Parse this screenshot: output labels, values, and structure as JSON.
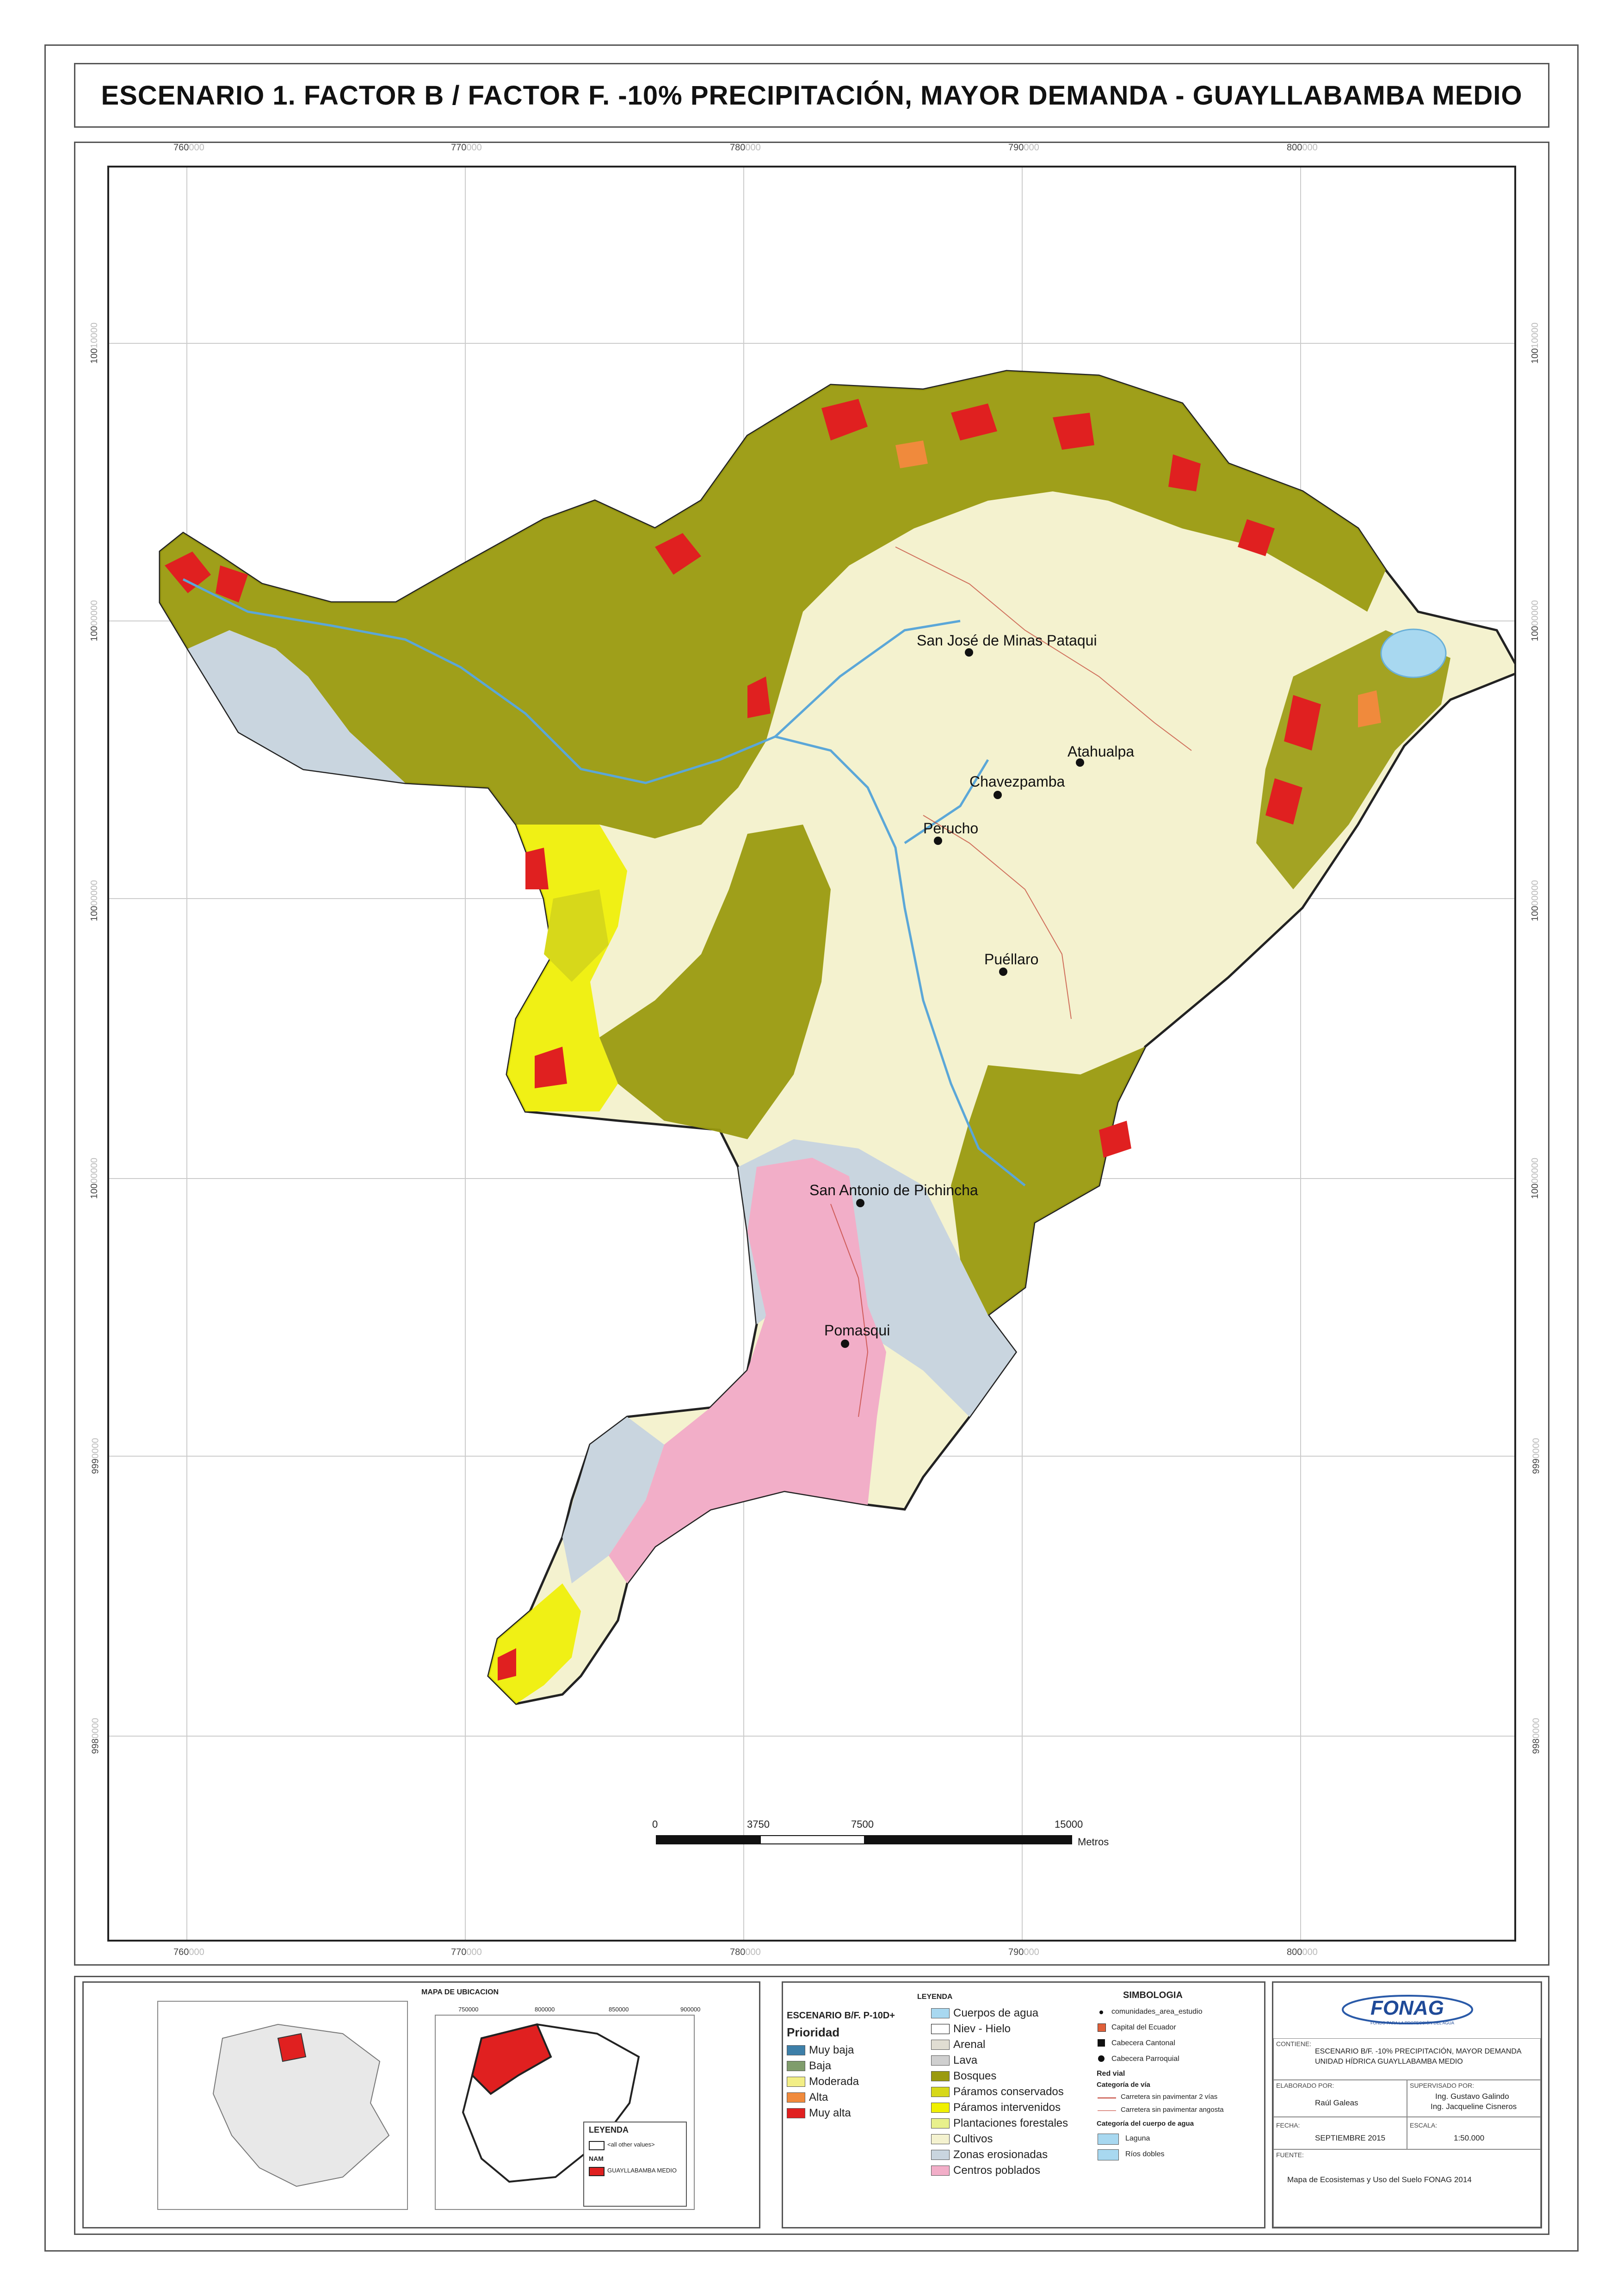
{
  "title": "ESCENARIO 1. FACTOR B / FACTOR F. -10% PRECIPITACIÓN, MAYOR DEMANDA - GUAYLLABAMBA MEDIO",
  "axes": {
    "x_ticks_top": [
      {
        "main": "760",
        "sub": "000"
      },
      {
        "main": "770",
        "sub": "000"
      },
      {
        "main": "780",
        "sub": "000"
      },
      {
        "main": "790",
        "sub": "000"
      },
      {
        "main": "800",
        "sub": "000"
      }
    ],
    "x_ticks_bottom": [
      {
        "main": "760",
        "sub": "000"
      },
      {
        "main": "770",
        "sub": "000"
      },
      {
        "main": "780",
        "sub": "000"
      },
      {
        "main": "790",
        "sub": "000"
      },
      {
        "main": "800",
        "sub": "000"
      }
    ],
    "y_ticks": [
      {
        "main": "100",
        "sub": "10000"
      },
      {
        "main": "100",
        "sub": "00000"
      },
      {
        "main": "100",
        "sub": "00000"
      },
      {
        "main": "100",
        "sub": "00000"
      },
      {
        "main": "999",
        "sub": "0000"
      },
      {
        "main": "998",
        "sub": "0000"
      }
    ]
  },
  "places": [
    {
      "name": "San José de Minas Pataqui"
    },
    {
      "name": "Atahualpa"
    },
    {
      "name": "Chavezpamba"
    },
    {
      "name": "Perucho"
    },
    {
      "name": "Puéllaro"
    },
    {
      "name": "San Antonio de Pichincha"
    },
    {
      "name": "Pomasqui"
    }
  ],
  "scale_bar": {
    "labels": [
      "0",
      "3750",
      "7500",
      "15000"
    ],
    "unit": "Metros"
  },
  "location_map": {
    "title": "MAPA DE UBICACION",
    "legend_title": "LEYENDA",
    "legend_items": [
      "<all other values>",
      "NAM",
      "GUAYLLABAMBA MEDIO"
    ],
    "ticks": [
      "750000",
      "800000",
      "850000",
      "900000"
    ]
  },
  "legend": {
    "title": "LEYENDA",
    "scenario": "ESCENARIO B/F. P-10D+",
    "priority_title": "Prioridad",
    "priority_items": [
      {
        "label": "Muy baja",
        "color": "#3d7fa8"
      },
      {
        "label": "Baja",
        "color": "#7f9c6b"
      },
      {
        "label": "Moderada",
        "color": "#f2ee86"
      },
      {
        "label": "Alta",
        "color": "#f08a3c"
      },
      {
        "label": "Muy alta",
        "color": "#e02020"
      }
    ],
    "cover_items": [
      {
        "label": "Cuerpos de agua",
        "color": "#a8d8f0"
      },
      {
        "label": "Niev - Hielo",
        "color": "#ffffff"
      },
      {
        "label": "Arenal",
        "color": "#e0ddd2"
      },
      {
        "label": "Lava",
        "color": "#cfcfcf"
      },
      {
        "label": "Bosques",
        "color": "#9a9a10"
      },
      {
        "label": "Páramos conservados",
        "color": "#d7d81a"
      },
      {
        "label": "Páramos intervenidos",
        "color": "#f0f000"
      },
      {
        "label": "Plantaciones forestales",
        "color": "#e8f08c"
      },
      {
        "label": "Cultivos",
        "color": "#f4f2cf"
      },
      {
        "label": "Zonas erosionadas",
        "color": "#c9d5df"
      },
      {
        "label": "Centros poblados",
        "color": "#f2aec8"
      }
    ]
  },
  "symbology": {
    "title": "SIMBOLOGIA",
    "items": [
      "comunidades_area_estudio",
      "Capital del Ecuador",
      "Cabecera Cantonal",
      "Cabecera Parroquial"
    ],
    "roads_title": "Red vial",
    "roads_subtitle": "Categoría de vía",
    "roads": [
      "Carretera sin pavimentar 2 vías",
      "Carretera sin pavimentar angosta"
    ],
    "water_title": "Categoría del cuerpo de agua",
    "water": [
      {
        "label": "Laguna",
        "color": "#a8d8f0"
      },
      {
        "label": "Ríos dobles",
        "color": "#a8d8f0"
      }
    ]
  },
  "infobox": {
    "logo": "FONAG",
    "logo_sub": "FONDO PARA LA PROTECCIÓN DEL AGUA",
    "contiene_label": "CONTIENE:",
    "contiene_value1": "ESCENARIO B/F. -10% PRECIPITACIÓN, MAYOR DEMANDA",
    "contiene_value2": "UNIDAD HÍDRICA GUAYLLABAMBA MEDIO",
    "elaborado_label": "ELABORADO POR:",
    "elaborado_value": "Raúl Galeas",
    "supervisado_label": "SUPERVISADO POR:",
    "supervisado_value1": "Ing. Gustavo Galindo",
    "supervisado_value2": "Ing. Jacqueline Cisneros",
    "fecha_label": "FECHA:",
    "fecha_value": "SEPTIEMBRE 2015",
    "escala_label": "ESCALA:",
    "escala_value": "1:50.000",
    "fuente_label": "FUENTE:",
    "fuente_value": "Mapa de Ecosistemas y Uso del Suelo FONAG 2014"
  }
}
